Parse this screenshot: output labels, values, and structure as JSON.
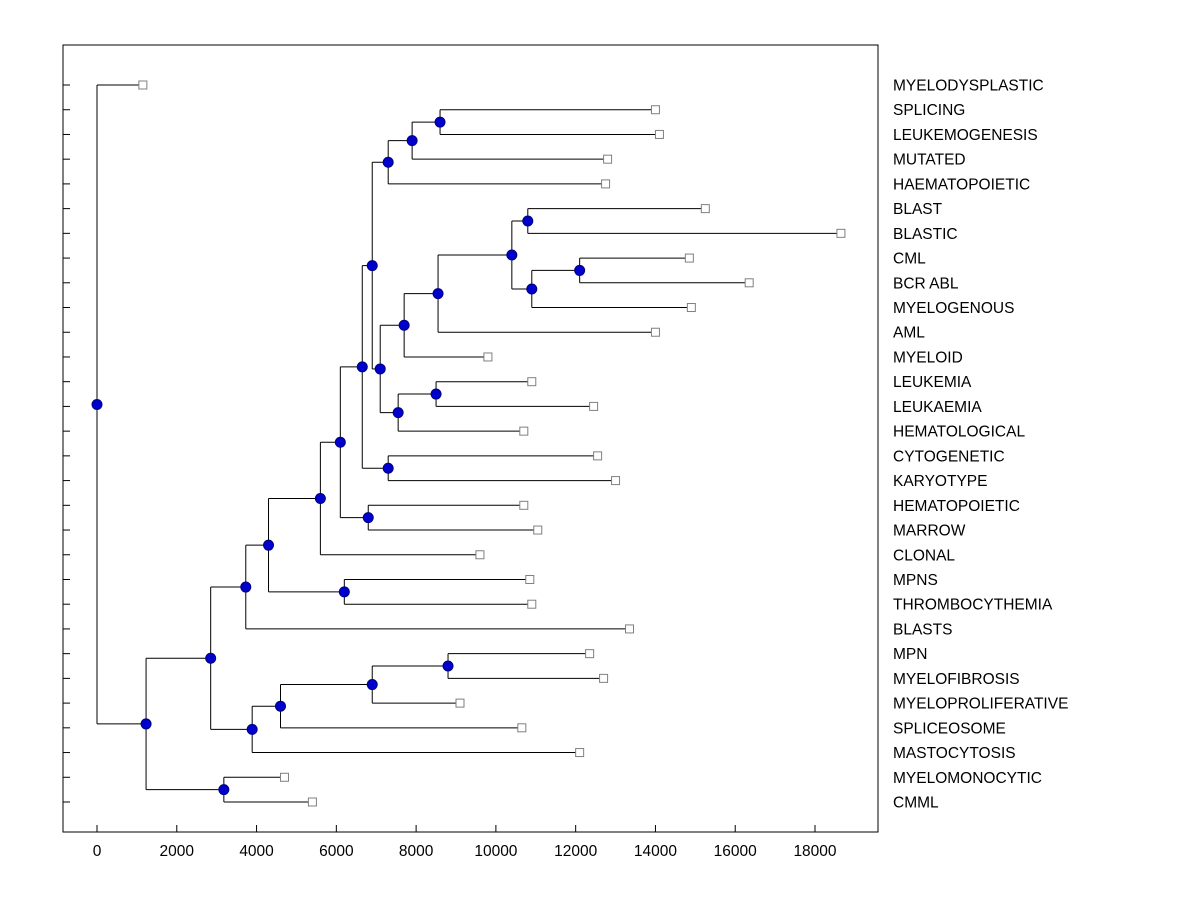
{
  "chart_data": {
    "type": "dendrogram",
    "title": "",
    "xlabel": "",
    "ylabel": "",
    "orientation": "root-left-leaves-right",
    "x_axis": {
      "ticks": [
        0,
        2000,
        4000,
        6000,
        8000,
        10000,
        12000,
        14000,
        16000,
        18000
      ],
      "xlim": [
        -900,
        19600
      ],
      "grid": false
    },
    "legend": null,
    "leaf_labels": [
      "MYELODYSPLASTIC",
      "SPLICING",
      "LEUKEMOGENESIS",
      "MUTATED",
      "HAEMATOPOIETIC",
      "BLAST",
      "BLASTIC",
      "CML",
      "BCR ABL",
      "MYELOGENOUS",
      "AML",
      "MYELOID",
      "LEUKEMIA",
      "LEUKAEMIA",
      "HEMATOLOGICAL",
      "CYTOGENETIC",
      "KARYOTYPE",
      "HEMATOPOIETIC",
      "MARROW",
      "CLONAL",
      "MPNS",
      "THROMBOCYTHEMIA",
      "BLASTS",
      "MPN",
      "MYELOFIBROSIS",
      "MYELOPROLIFERATIVE",
      "SPLICEOSOME",
      "MASTOCYTOSIS",
      "MYELOMONOCYTIC",
      "CMML"
    ],
    "colors": {
      "line": "#000000",
      "node_fill": "#0000CD",
      "node_edge": "#000080",
      "leaf_fill": "#FFFFFF",
      "leaf_edge": "#808080",
      "text": "#000000",
      "background": "#FFFFFF"
    },
    "markers": {
      "internal": "filled-circle",
      "leaf": "open-square"
    },
    "tree": {
      "d": 0,
      "c": [
        {
          "label": "MYELODYSPLASTIC",
          "d": 1150
        },
        {
          "d": 1230,
          "c": [
            {
              "d": 2850,
              "c": [
                {
                  "d": 3730,
                  "c": [
                    {
                      "d": 4300,
                      "c": [
                        {
                          "d": 5600,
                          "c": [
                            {
                              "d": 6100,
                              "c": [
                                {
                                  "d": 6650,
                                  "c": [
                                    {
                                      "d": 6900,
                                      "c": [
                                        {
                                          "d": 7300,
                                          "c": [
                                            {
                                              "d": 7900,
                                              "c": [
                                                {
                                                  "d": 8600,
                                                  "c": [
                                                    {
                                                      "label": "SPLICING",
                                                      "d": 14000
                                                    },
                                                    {
                                                      "label": "LEUKEMOGENESIS",
                                                      "d": 14100
                                                    }
                                                  ]
                                                },
                                                {
                                                  "label": "MUTATED",
                                                  "d": 12800
                                                }
                                              ]
                                            },
                                            {
                                              "label": "HAEMATOPOIETIC",
                                              "d": 12750
                                            }
                                          ]
                                        },
                                        {
                                          "d": 7100,
                                          "c": [
                                            {
                                              "d": 7700,
                                              "c": [
                                                {
                                                  "d": 8550,
                                                  "c": [
                                                    {
                                                      "d": 10400,
                                                      "c": [
                                                        {
                                                          "d": 10800,
                                                          "c": [
                                                            {
                                                              "label": "BLAST",
                                                              "d": 15250
                                                            },
                                                            {
                                                              "label": "BLASTIC",
                                                              "d": 18650
                                                            }
                                                          ]
                                                        },
                                                        {
                                                          "d": 10900,
                                                          "c": [
                                                            {
                                                              "d": 12100,
                                                              "c": [
                                                                {
                                                                  "label": "CML",
                                                                  "d": 14850
                                                                },
                                                                {
                                                                  "label": "BCR ABL",
                                                                  "d": 16350
                                                                }
                                                              ]
                                                            },
                                                            {
                                                              "label": "MYELOGENOUS",
                                                              "d": 14900
                                                            }
                                                          ]
                                                        }
                                                      ]
                                                    },
                                                    {
                                                      "label": "AML",
                                                      "d": 14000
                                                    }
                                                  ]
                                                },
                                                {
                                                  "label": "MYELOID",
                                                  "d": 9800
                                                }
                                              ]
                                            },
                                            {
                                              "d": 7550,
                                              "c": [
                                                {
                                                  "d": 8500,
                                                  "c": [
                                                    {
                                                      "label": "LEUKEMIA",
                                                      "d": 10900
                                                    },
                                                    {
                                                      "label": "LEUKAEMIA",
                                                      "d": 12450
                                                    }
                                                  ]
                                                },
                                                {
                                                  "label": "HEMATOLOGICAL",
                                                  "d": 10700
                                                }
                                              ]
                                            }
                                          ]
                                        }
                                      ]
                                    },
                                    {
                                      "d": 7300,
                                      "c": [
                                        {
                                          "label": "CYTOGENETIC",
                                          "d": 12550
                                        },
                                        {
                                          "label": "KARYOTYPE",
                                          "d": 13000
                                        }
                                      ]
                                    }
                                  ]
                                },
                                {
                                  "d": 6800,
                                  "c": [
                                    {
                                      "label": "HEMATOPOIETIC",
                                      "d": 10700
                                    },
                                    {
                                      "label": "MARROW",
                                      "d": 11050
                                    }
                                  ]
                                }
                              ]
                            },
                            {
                              "label": "CLONAL",
                              "d": 9600
                            }
                          ]
                        },
                        {
                          "d": 6200,
                          "c": [
                            {
                              "label": "MPNS",
                              "d": 10850
                            },
                            {
                              "label": "THROMBOCYTHEMIA",
                              "d": 10900
                            }
                          ]
                        }
                      ]
                    },
                    {
                      "label": "BLASTS",
                      "d": 13350
                    }
                  ]
                },
                {
                  "d": 3890,
                  "c": [
                    {
                      "d": 4600,
                      "c": [
                        {
                          "d": 6900,
                          "c": [
                            {
                              "d": 8800,
                              "c": [
                                {
                                  "label": "MPN",
                                  "d": 12350
                                },
                                {
                                  "label": "MYELOFIBROSIS",
                                  "d": 12700
                                }
                              ]
                            },
                            {
                              "label": "MYELOPROLIFERATIVE",
                              "d": 9100
                            }
                          ]
                        },
                        {
                          "label": "SPLICEOSOME",
                          "d": 10650
                        }
                      ]
                    },
                    {
                      "label": "MASTOCYTOSIS",
                      "d": 12100
                    }
                  ]
                }
              ]
            },
            {
              "d": 3180,
              "c": [
                {
                  "label": "MYELOMONOCYTIC",
                  "d": 4700
                },
                {
                  "label": "CMML",
                  "d": 5400
                }
              ]
            }
          ]
        }
      ]
    }
  }
}
